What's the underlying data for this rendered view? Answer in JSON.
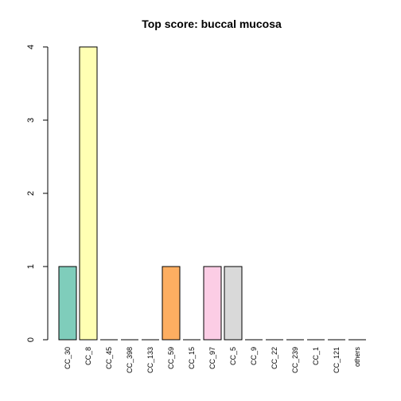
{
  "chart_data": {
    "type": "bar",
    "title": "Top score:  buccal mucosa",
    "xlabel": "",
    "ylabel": "",
    "ylim": [
      0,
      4
    ],
    "yticks": [
      0,
      1,
      2,
      3,
      4
    ],
    "categories": [
      "CC_30",
      "CC_8",
      "CC_45",
      "CC_398",
      "CC_133",
      "CC_59",
      "CC_15",
      "CC_97",
      "CC_5",
      "CC_9",
      "CC_22",
      "CC_239",
      "CC_1",
      "CC_121",
      "others"
    ],
    "values": [
      1,
      4,
      0,
      0,
      0,
      1,
      0,
      1,
      1,
      0,
      0,
      0,
      0,
      0,
      0
    ],
    "colors": [
      "#7fcdbb",
      "#ffffb3",
      "#8dd3c7",
      "#bebada",
      "#fb8072",
      "#fdae61",
      "#b3de69",
      "#fccde5",
      "#d9d9d9",
      "#bc80bd",
      "#ccebc5",
      "#ffed6f",
      "#a6cee3",
      "#b2df8a",
      "#fb9a99"
    ],
    "grid": false,
    "legend": "none"
  }
}
